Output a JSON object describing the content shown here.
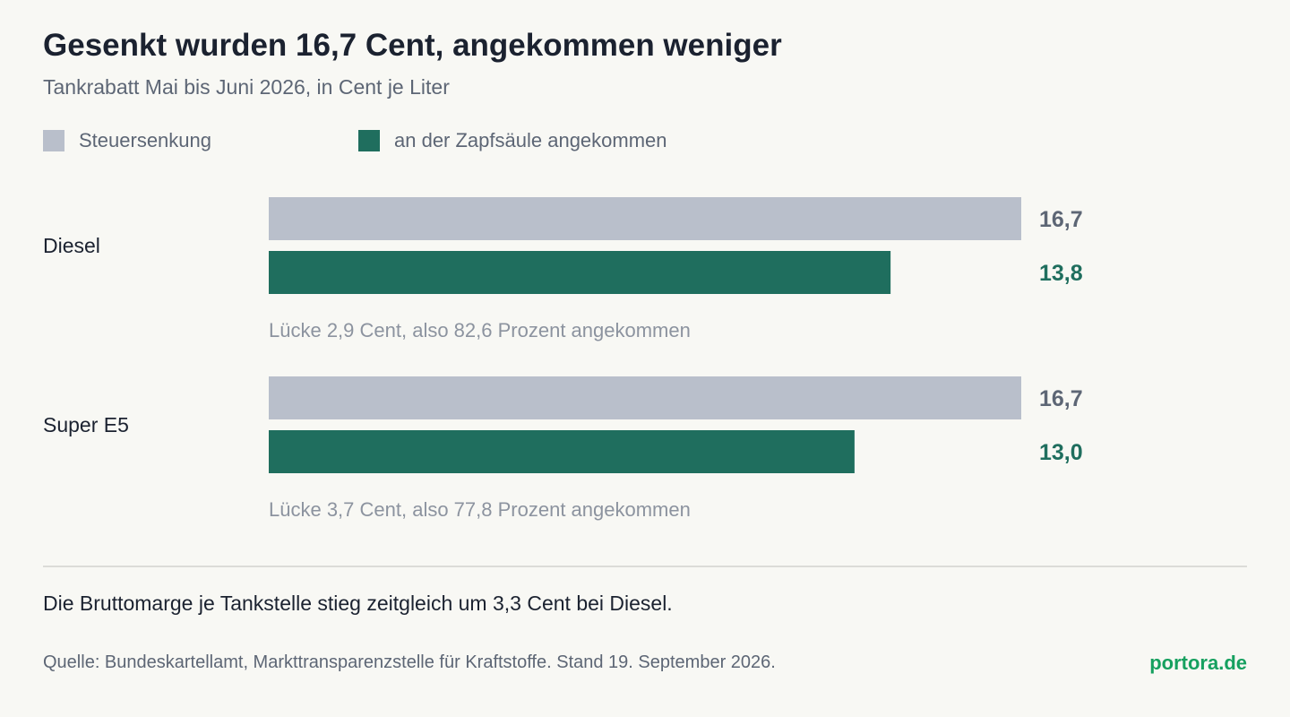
{
  "header": {
    "title": "Gesenkt wurden 16,7 Cent, angekommen weniger",
    "subtitle": "Tankrabatt Mai bis Juni 2026, in Cent je Liter"
  },
  "legend": [
    {
      "label": "Steuersenkung",
      "color": "#b9bfcb"
    },
    {
      "label": "an der Zapfsäule angekommen",
      "color": "#1f6e5e"
    }
  ],
  "chart_data": {
    "type": "bar",
    "orientation": "horizontal",
    "categories": [
      "Diesel",
      "Super E5"
    ],
    "series": [
      {
        "name": "Steuersenkung",
        "values": [
          16.7,
          16.7
        ],
        "labels": [
          "16,7",
          "16,7"
        ],
        "color": "#b9bfcb"
      },
      {
        "name": "an der Zapfsäule angekommen",
        "values": [
          13.8,
          13.0
        ],
        "labels": [
          "13,8",
          "13,0"
        ],
        "color": "#1f6e5e"
      }
    ],
    "annotations": [
      "Lücke 2,9 Cent, also 82,6 Prozent angekommen",
      "Lücke 3,7 Cent, also 77,8 Prozent angekommen"
    ],
    "xlim": [
      0,
      16.7
    ],
    "grid": false,
    "legend_position": "top-left"
  },
  "footer": {
    "note": "Die Bruttomarge je Tankstelle stieg zeitgleich um 3,3 Cent bei Diesel.",
    "source": "Quelle: Bundeskartellamt, Markttransparenzstelle für Kraftstoffe. Stand 19. September 2026.",
    "brand": "portora.de"
  }
}
